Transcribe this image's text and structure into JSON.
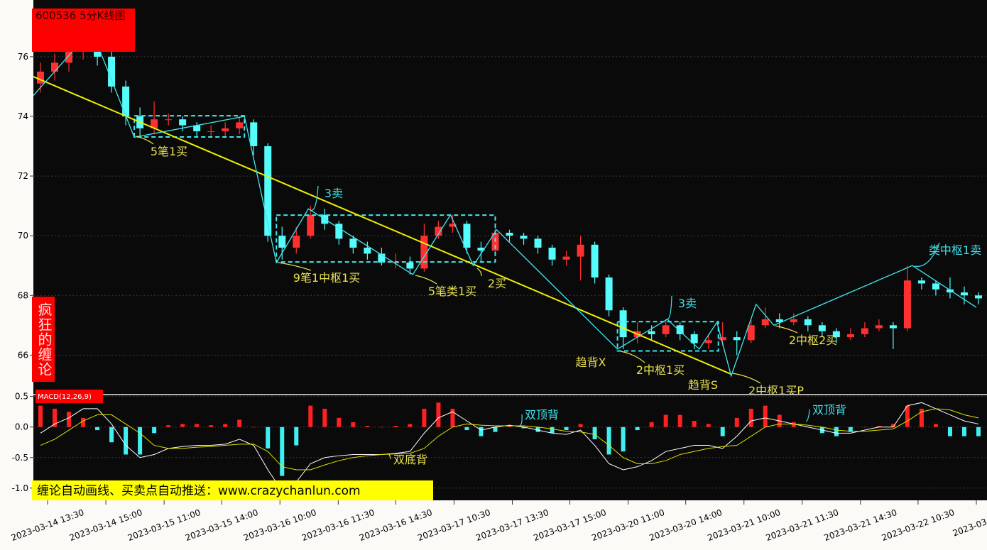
{
  "chart_data": [
    {
      "type": "candlestick",
      "title": "600536 5分K线图",
      "side_label": "疯狂的缠论",
      "footer": "缠论自动画线、买卖点自动推送：www.crazychanlun.com",
      "up_color": "#ff3030",
      "down_color": "#54fcfc",
      "open": [
        75.1,
        75.5,
        75.8,
        76.2,
        76.6,
        76.0,
        75.0,
        74.0,
        73.6,
        73.9,
        73.9,
        73.7,
        73.5,
        73.5,
        73.6,
        73.8,
        73.0,
        70.0,
        69.6,
        70.0,
        70.7,
        70.4,
        69.9,
        69.6,
        69.4,
        69.1,
        69.1,
        68.9,
        70.0,
        70.3,
        70.4,
        69.6,
        69.5,
        70.1,
        70.0,
        69.9,
        69.6,
        69.2,
        69.3,
        69.7,
        68.6,
        67.5,
        66.6,
        66.8,
        66.7,
        67.0,
        66.7,
        66.4,
        66.5,
        66.6,
        66.5,
        67.0,
        67.2,
        67.1,
        67.2,
        67.0,
        66.8,
        66.6,
        66.7,
        66.9,
        67.0,
        66.9,
        68.5,
        68.4,
        68.2,
        68.1,
        68.0
      ],
      "high": [
        75.8,
        76.1,
        76.5,
        77.0,
        76.9,
        76.2,
        75.2,
        74.3,
        74.5,
        74.1,
        74.0,
        73.8,
        73.7,
        73.8,
        74.0,
        73.9,
        73.1,
        70.3,
        70.3,
        71.0,
        70.9,
        70.5,
        70.0,
        69.8,
        69.6,
        69.4,
        69.3,
        70.4,
        70.5,
        70.7,
        70.5,
        69.8,
        70.3,
        70.2,
        70.1,
        70.0,
        69.7,
        69.5,
        70.0,
        69.8,
        68.7,
        67.6,
        67.1,
        67.0,
        67.2,
        67.1,
        66.8,
        66.7,
        67.1,
        66.8,
        67.2,
        67.6,
        67.4,
        67.4,
        67.3,
        67.1,
        66.9,
        66.9,
        67.1,
        67.2,
        67.1,
        69.0,
        68.6,
        68.5,
        68.6,
        68.3,
        68.1
      ],
      "low": [
        74.8,
        75.2,
        75.5,
        75.9,
        75.7,
        74.8,
        73.7,
        73.3,
        73.4,
        73.7,
        73.5,
        73.3,
        73.3,
        73.3,
        73.4,
        72.7,
        69.8,
        69.2,
        69.4,
        69.9,
        70.2,
        69.7,
        69.4,
        69.2,
        69.0,
        68.9,
        68.7,
        68.8,
        69.9,
        70.1,
        69.4,
        69.1,
        69.4,
        69.8,
        69.7,
        69.4,
        69.0,
        69.0,
        68.5,
        68.4,
        67.3,
        66.2,
        66.4,
        66.5,
        66.6,
        66.5,
        66.2,
        66.2,
        66.3,
        66.0,
        66.4,
        66.9,
        66.9,
        67.0,
        66.8,
        66.6,
        66.4,
        66.5,
        66.6,
        66.8,
        66.2,
        66.8,
        68.2,
        68.0,
        67.9,
        67.7,
        67.7
      ],
      "close": [
        75.5,
        75.8,
        76.2,
        76.6,
        76.0,
        75.0,
        74.0,
        73.6,
        73.9,
        73.9,
        73.7,
        73.5,
        73.5,
        73.6,
        73.8,
        73.0,
        70.0,
        69.6,
        70.0,
        70.7,
        70.4,
        69.9,
        69.6,
        69.4,
        69.1,
        69.1,
        68.9,
        70.0,
        70.3,
        70.4,
        69.6,
        69.5,
        70.1,
        70.0,
        69.9,
        69.6,
        69.2,
        69.3,
        69.7,
        68.6,
        67.5,
        66.6,
        66.8,
        66.7,
        67.0,
        66.7,
        66.4,
        66.5,
        66.6,
        66.5,
        67.0,
        67.2,
        67.1,
        67.2,
        67.0,
        66.8,
        66.6,
        66.7,
        66.9,
        67.0,
        66.9,
        68.5,
        68.4,
        68.2,
        68.1,
        68.0,
        67.9
      ],
      "xlim": [
        -0.5,
        66.6
      ],
      "xticks": [
        {
          "value": 0.5,
          "label": "2023-03-14 13:30"
        },
        {
          "value": 4.6,
          "label": "2023-03-14 15:00"
        },
        {
          "value": 8.7,
          "label": "2023-03-15 11:00"
        },
        {
          "value": 12.75,
          "label": "2023-03-15 14:00"
        },
        {
          "value": 16.85,
          "label": "2023-03-16 10:00"
        },
        {
          "value": 20.95,
          "label": "2023-03-16 11:30"
        },
        {
          "value": 25,
          "label": "2023-03-16 14:30"
        },
        {
          "value": 29.1,
          "label": "2023-03-17 10:30"
        },
        {
          "value": 33.2,
          "label": "2023-03-17 13:30"
        },
        {
          "value": 37.25,
          "label": "2023-03-17 15:00"
        },
        {
          "value": 41.35,
          "label": "2023-03-20 11:00"
        },
        {
          "value": 45.4,
          "label": "2023-03-20 14:00"
        },
        {
          "value": 49.5,
          "label": "2023-03-21 10:00"
        },
        {
          "value": 53.6,
          "label": "2023-03-21 11:30"
        },
        {
          "value": 57.7,
          "label": "2023-03-21 14:30"
        },
        {
          "value": 61.75,
          "label": "2023-03-22 10:30"
        },
        {
          "value": 65.85,
          "label": "2023-03-22"
        }
      ],
      "ylim": [
        64.7,
        77.9
      ],
      "yticks": [
        66,
        68,
        70,
        72,
        74,
        76
      ],
      "grid": true,
      "strokes": {
        "color": "#40e8f0",
        "x": [
          -0.5,
          3.6,
          6.6,
          14.35,
          16.6,
          18.85,
          26.2,
          28.85,
          30.45,
          32.1,
          40.6,
          44.1,
          46.35,
          47.6,
          48.6,
          50.35,
          51.6,
          61.35,
          65.85
        ],
        "y": [
          74.7,
          76.9,
          73.3,
          74.0,
          69.1,
          70.9,
          68.7,
          70.7,
          69.0,
          70.2,
          66.2,
          67.2,
          66.2,
          67.1,
          65.3,
          67.7,
          67.0,
          69.0,
          67.6
        ]
      },
      "centers": [
        {
          "x": [
            6.6,
            14.35
          ],
          "y": [
            73.31,
            74.02
          ]
        },
        {
          "x": [
            16.6,
            32
          ],
          "y": [
            69.12,
            70.69
          ]
        },
        {
          "x": [
            40.6,
            47.7
          ],
          "y": [
            66.14,
            67.12
          ]
        }
      ],
      "center_color": "#40e8f0",
      "trendline": {
        "x": [
          -0.5,
          48.6
        ],
        "y": [
          75.33,
          65.36
        ],
        "color": "#f0f000"
      },
      "annotations": [
        {
          "text": "5笔1买",
          "color": "#e8e050"
        },
        {
          "text": "3卖",
          "color": "#40e0e8"
        },
        {
          "text": "9笔1中枢1买",
          "color": "#e8e050"
        },
        {
          "text": "5笔类1买",
          "color": "#e8e050"
        },
        {
          "text": "2买",
          "color": "#e8e050"
        },
        {
          "text": "3卖",
          "color": "#40e0e8"
        },
        {
          "text": "趋背X",
          "color": "#e8e050"
        },
        {
          "text": "2中枢1买",
          "color": "#e8e050"
        },
        {
          "text": "趋背S",
          "color": "#e8e050"
        },
        {
          "text": "2中枢1买P",
          "color": "#e8e050"
        },
        {
          "text": "2中枢2买",
          "color": "#e8e050"
        },
        {
          "text": "类中枢1卖",
          "color": "#40e0e8"
        }
      ]
    },
    {
      "type": "macd",
      "title": "MACD(12,26,9)",
      "ylim": [
        -1.2,
        0.52
      ],
      "yticks": [
        0.5,
        {
          "value": 0,
          "label": "0.0"
        },
        -0.5,
        {
          "value": -1,
          "label": "-1.0"
        }
      ],
      "grid": true,
      "series": [
        {
          "color": "#ff2020",
          "neg_color": "#40f0f0",
          "values": [
            0.35,
            0.3,
            0.25,
            0.15,
            -0.05,
            -0.25,
            -0.45,
            -0.45,
            -0.1,
            0.03,
            0.05,
            0.05,
            0.03,
            0.05,
            0.12,
            0.0,
            -0.35,
            -0.8,
            -0.3,
            0.35,
            0.3,
            0.15,
            0.08,
            0.02,
            0.0,
            0.02,
            0.05,
            0.3,
            0.4,
            0.3,
            -0.05,
            -0.15,
            -0.08,
            0.02,
            -0.02,
            -0.08,
            -0.1,
            -0.05,
            0.05,
            -0.2,
            -0.45,
            -0.4,
            -0.05,
            0.08,
            0.2,
            0.2,
            0.1,
            0.05,
            -0.15,
            0.15,
            0.3,
            0.35,
            0.2,
            0.08,
            0.0,
            -0.1,
            -0.15,
            -0.08,
            0.0,
            0.02,
            0.05,
            0.35,
            0.3,
            0.05,
            -0.15,
            -0.15,
            -0.15
          ]
        },
        {
          "color": "#ffffff",
          "values": [
            -0.1,
            0.05,
            0.15,
            0.3,
            0.3,
            0.05,
            -0.3,
            -0.5,
            -0.45,
            -0.35,
            -0.32,
            -0.3,
            -0.3,
            -0.28,
            -0.2,
            -0.3,
            -0.7,
            -1.05,
            -0.9,
            -0.6,
            -0.5,
            -0.47,
            -0.45,
            -0.45,
            -0.45,
            -0.43,
            -0.4,
            -0.1,
            0.15,
            0.25,
            0.1,
            -0.05,
            0.0,
            0.03,
            0.0,
            -0.05,
            -0.1,
            -0.12,
            -0.05,
            -0.3,
            -0.6,
            -0.7,
            -0.65,
            -0.55,
            -0.4,
            -0.35,
            -0.3,
            -0.3,
            -0.35,
            -0.15,
            0.1,
            0.15,
            0.1,
            0.05,
            0.0,
            -0.05,
            -0.1,
            -0.1,
            -0.05,
            0.0,
            0.0,
            0.35,
            0.4,
            0.3,
            0.2,
            0.1,
            0.05
          ]
        },
        {
          "color": "#e0e000",
          "values": [
            -0.3,
            -0.2,
            -0.05,
            0.1,
            0.2,
            0.2,
            0.05,
            -0.1,
            -0.3,
            -0.35,
            -0.35,
            -0.33,
            -0.32,
            -0.3,
            -0.28,
            -0.28,
            -0.4,
            -0.65,
            -0.7,
            -0.7,
            -0.62,
            -0.55,
            -0.5,
            -0.47,
            -0.45,
            -0.44,
            -0.43,
            -0.35,
            -0.15,
            0.0,
            0.05,
            0.03,
            0.02,
            0.02,
            0.02,
            0.0,
            -0.03,
            -0.07,
            -0.08,
            -0.12,
            -0.3,
            -0.5,
            -0.6,
            -0.6,
            -0.55,
            -0.45,
            -0.4,
            -0.35,
            -0.32,
            -0.3,
            -0.15,
            0.0,
            0.05,
            0.05,
            0.03,
            0.0,
            -0.05,
            -0.07,
            -0.07,
            -0.05,
            -0.03,
            0.1,
            0.25,
            0.3,
            0.28,
            0.2,
            0.15
          ]
        }
      ],
      "annotations": [
        {
          "text": "双顶背",
          "color": "#40e0e8"
        },
        {
          "text": "双底背",
          "color": "#e8e050"
        },
        {
          "text": "双顶背",
          "color": "#40e0e8"
        }
      ]
    }
  ]
}
